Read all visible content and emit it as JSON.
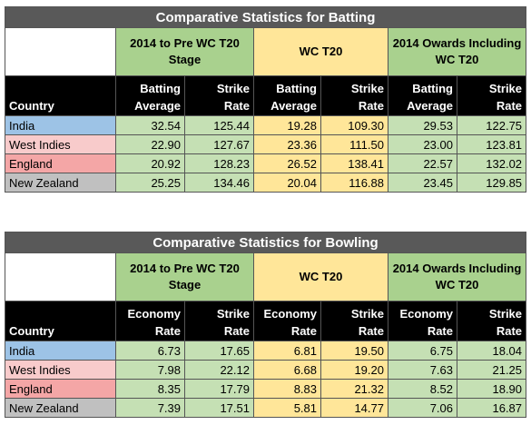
{
  "chart_data": [
    {
      "type": "table",
      "title": "Comparative Statistics for Batting",
      "groups": [
        "2014 to Pre WC T20 Stage",
        "WC T20",
        "2014 Owards Including WC T20"
      ],
      "row_header": "Country",
      "columns": [
        "Batting Average",
        "Strike Rate",
        "Batting Average",
        "Strike Rate",
        "Batting Average",
        "Strike Rate"
      ],
      "rows": [
        {
          "country": "India",
          "color": "#9dc3e6",
          "values": [
            "32.54",
            "125.44",
            "19.28",
            "109.30",
            "29.53",
            "122.75"
          ]
        },
        {
          "country": "West Indies",
          "color": "#f8cbcb",
          "values": [
            "22.90",
            "127.67",
            "23.36",
            "111.50",
            "23.00",
            "123.81"
          ]
        },
        {
          "country": "England",
          "color": "#f4a6a6",
          "values": [
            "20.92",
            "128.23",
            "26.52",
            "138.41",
            "22.57",
            "132.02"
          ]
        },
        {
          "country": "New Zealand",
          "color": "#c0c0c0",
          "values": [
            "25.25",
            "134.46",
            "20.04",
            "116.88",
            "23.45",
            "129.85"
          ]
        }
      ]
    },
    {
      "type": "table",
      "title": "Comparative Statistics for Bowling",
      "groups": [
        "2014 to Pre WC T20 Stage",
        "WC T20",
        "2014 Owards Including WC T20"
      ],
      "row_header": "Country",
      "columns": [
        "Economy Rate",
        "Strike Rate",
        "Economy Rate",
        "Strike Rate",
        "Economy Rate",
        "Strike Rate"
      ],
      "rows": [
        {
          "country": "India",
          "color": "#9dc3e6",
          "values": [
            "6.73",
            "17.65",
            "6.81",
            "19.50",
            "6.75",
            "18.04"
          ]
        },
        {
          "country": "West Indies",
          "color": "#f8cbcb",
          "values": [
            "7.98",
            "22.12",
            "6.68",
            "19.20",
            "7.63",
            "21.25"
          ]
        },
        {
          "country": "England",
          "color": "#f4a6a6",
          "values": [
            "8.35",
            "17.79",
            "8.83",
            "21.32",
            "8.52",
            "18.90"
          ]
        },
        {
          "country": "New Zealand",
          "color": "#c0c0c0",
          "values": [
            "7.39",
            "17.51",
            "5.81",
            "14.77",
            "7.06",
            "16.87"
          ]
        }
      ]
    }
  ]
}
